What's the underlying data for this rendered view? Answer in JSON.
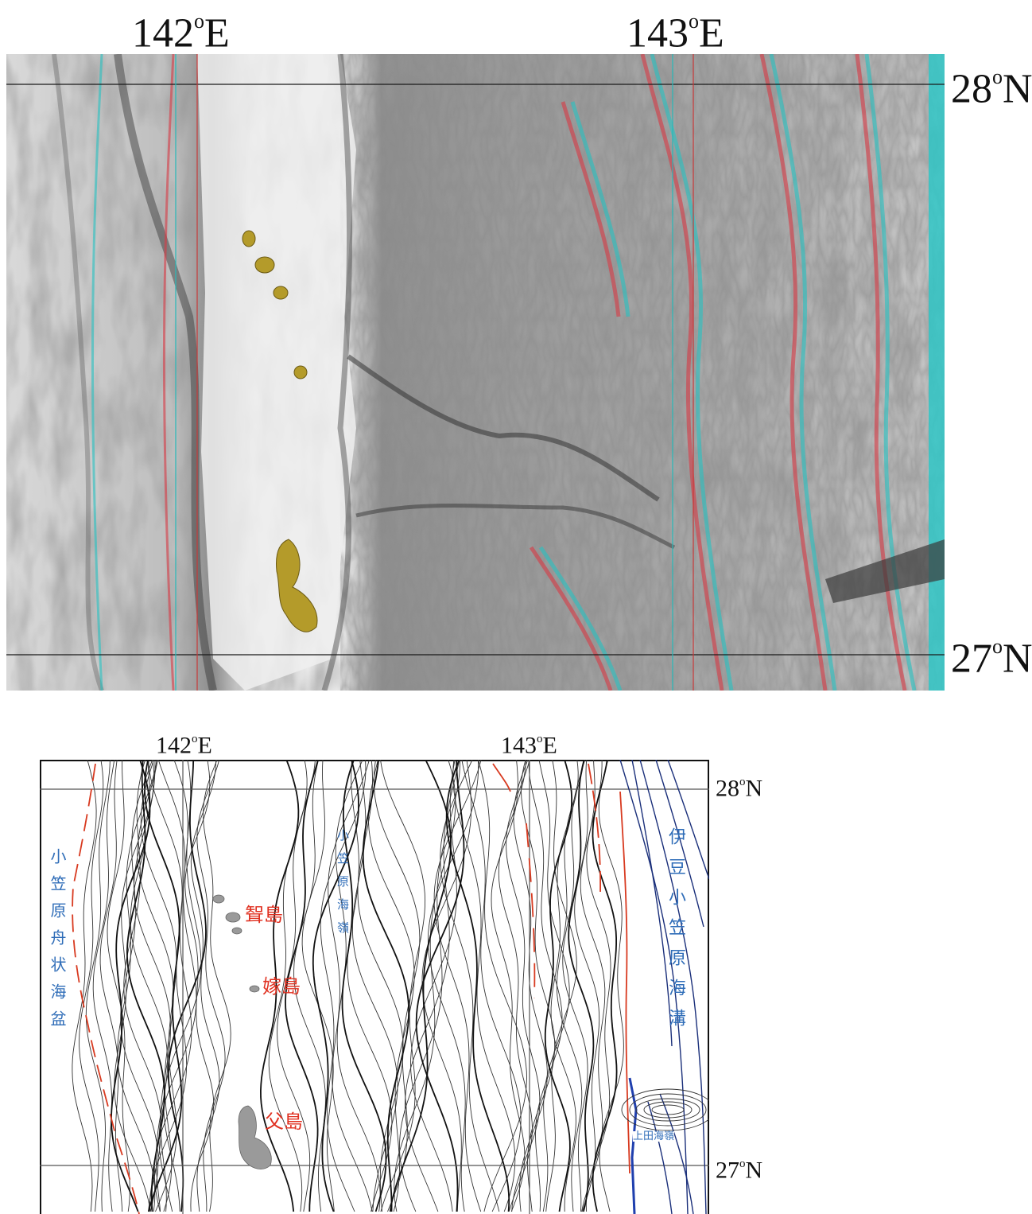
{
  "top_map": {
    "lon_labels": [
      {
        "deg": "142",
        "sup": "o",
        "hem": "E"
      },
      {
        "deg": "143",
        "sup": "o",
        "hem": "E"
      }
    ],
    "lat_labels": [
      {
        "deg": "28",
        "sup": "o",
        "hem": "N"
      },
      {
        "deg": "27",
        "sup": "o",
        "hem": "N"
      }
    ]
  },
  "bottom_map": {
    "lon_labels": [
      {
        "deg": "142",
        "sup": "o",
        "hem": "E"
      },
      {
        "deg": "143",
        "sup": "o",
        "hem": "E"
      }
    ],
    "lat_labels": [
      {
        "deg": "28",
        "sup": "o",
        "hem": "N"
      },
      {
        "deg": "27",
        "sup": "o",
        "hem": "N"
      }
    ],
    "features": {
      "ogasawara_trough": "小笠原舟状海盆",
      "ogasawara_ridge": "小笠原海嶺",
      "izu_ogasawara_trench": "伊豆小笠原海溝",
      "mukojima": "聟島",
      "yomejima": "嫁島",
      "chichijima": "父島",
      "ueda_seamount": "上田海嶺"
    },
    "colors": {
      "feature_blue": "#2f6db8",
      "island_red": "#e03020",
      "fault_red": "#d83a20",
      "trench_navy": "#1a2f7a",
      "contour": "#333333",
      "island_fill": "#9a9a9a"
    }
  }
}
